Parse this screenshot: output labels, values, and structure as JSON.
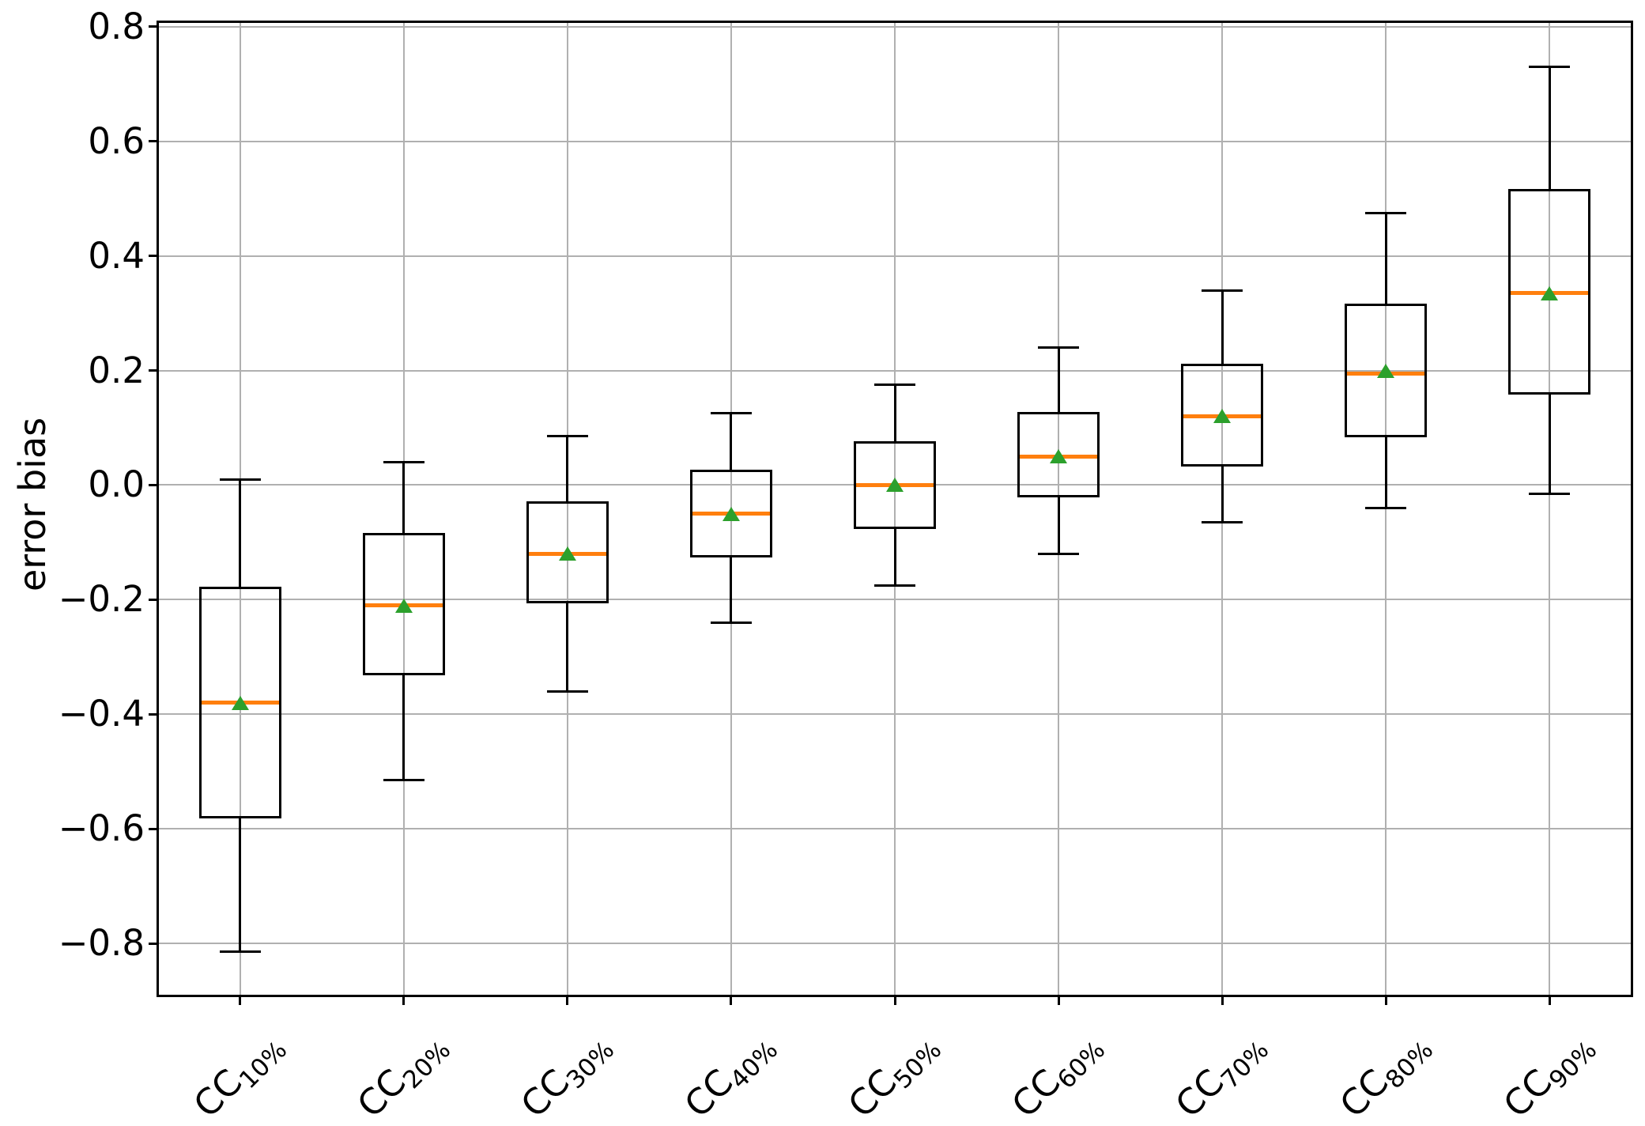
{
  "chart_data": {
    "type": "box",
    "title": "",
    "ylabel": "error bias",
    "xlabel": "",
    "ylim": [
      -0.891,
      0.808
    ],
    "grid": true,
    "legend": false,
    "yticks": [
      {
        "value": 0.8,
        "label": "0.8"
      },
      {
        "value": 0.6,
        "label": "0.6"
      },
      {
        "value": 0.4,
        "label": "0.4"
      },
      {
        "value": 0.2,
        "label": "0.2"
      },
      {
        "value": 0.0,
        "label": "0.0"
      },
      {
        "value": -0.2,
        "label": "−0.2"
      },
      {
        "value": -0.4,
        "label": "−0.4"
      },
      {
        "value": -0.6,
        "label": "−0.6"
      },
      {
        "value": -0.8,
        "label": "−0.8"
      }
    ],
    "series": [
      {
        "label_main": "CC",
        "label_sub": "10%",
        "whislo": -0.815,
        "q1": -0.58,
        "med": -0.38,
        "mean": -0.38,
        "q3": -0.18,
        "whishi": 0.01
      },
      {
        "label_main": "CC",
        "label_sub": "20%",
        "whislo": -0.515,
        "q1": -0.33,
        "med": -0.21,
        "mean": -0.21,
        "q3": -0.085,
        "whishi": 0.04
      },
      {
        "label_main": "CC",
        "label_sub": "30%",
        "whislo": -0.36,
        "q1": -0.205,
        "med": -0.12,
        "mean": -0.12,
        "q3": -0.03,
        "whishi": 0.085
      },
      {
        "label_main": "CC",
        "label_sub": "40%",
        "whislo": -0.24,
        "q1": -0.125,
        "med": -0.05,
        "mean": -0.05,
        "q3": 0.025,
        "whishi": 0.125
      },
      {
        "label_main": "CC",
        "label_sub": "50%",
        "whislo": -0.175,
        "q1": -0.075,
        "med": 0.0,
        "mean": 0.0,
        "q3": 0.075,
        "whishi": 0.175
      },
      {
        "label_main": "CC",
        "label_sub": "60%",
        "whislo": -0.12,
        "q1": -0.02,
        "med": 0.05,
        "mean": 0.05,
        "q3": 0.125,
        "whishi": 0.24
      },
      {
        "label_main": "CC",
        "label_sub": "70%",
        "whislo": -0.065,
        "q1": 0.035,
        "med": 0.12,
        "mean": 0.12,
        "q3": 0.21,
        "whishi": 0.34
      },
      {
        "label_main": "CC",
        "label_sub": "80%",
        "whislo": -0.04,
        "q1": 0.085,
        "med": 0.195,
        "mean": 0.2,
        "q3": 0.315,
        "whishi": 0.475
      },
      {
        "label_main": "CC",
        "label_sub": "90%",
        "whislo": -0.015,
        "q1": 0.16,
        "med": 0.335,
        "mean": 0.335,
        "q3": 0.515,
        "whishi": 0.73
      }
    ],
    "colors": {
      "box": "#000000",
      "median": "#ff7f0e",
      "mean": "#2ca02c",
      "grid": "#b0b0b0",
      "background": "#ffffff"
    }
  }
}
